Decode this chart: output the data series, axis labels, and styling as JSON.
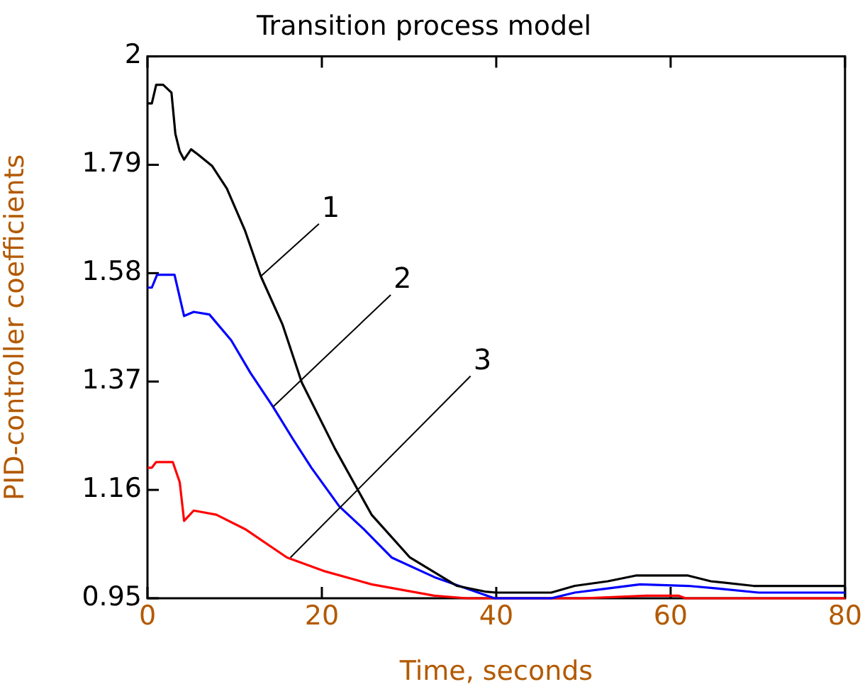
{
  "chart_data": {
    "type": "line",
    "title": "Transition process model",
    "xlabel": "Time, seconds",
    "ylabel": "PID-controller coefficients",
    "xlim": [
      0,
      80
    ],
    "xticks": [
      0,
      20,
      40,
      60,
      80
    ],
    "ylim": [
      0.95,
      2
    ],
    "yticks": [
      0.95,
      1.16,
      1.37,
      1.58,
      1.79,
      2
    ],
    "grid": false,
    "legend": false,
    "marker": "none",
    "line_style": "solid",
    "series": [
      {
        "color": "#000000",
        "x": [
          0,
          0.5,
          1.0,
          1.8,
          2.75,
          3.2,
          3.7,
          4.2,
          5.0,
          5.8,
          7.4,
          9.1,
          11.2,
          13,
          15.5,
          17.7,
          21.5,
          25.7,
          30.1,
          35.5,
          38.7,
          40,
          46.3,
          49,
          52.8,
          56,
          62,
          64.6,
          69.5,
          80
        ],
        "values": [
          1.909,
          1.909,
          1.945,
          1.945,
          1.93,
          1.85,
          1.816,
          1.8,
          1.82,
          1.81,
          1.788,
          1.744,
          1.662,
          1.574,
          1.48,
          1.368,
          1.24,
          1.112,
          1.029,
          0.974,
          0.963,
          0.961,
          0.961,
          0.974,
          0.983,
          0.994,
          0.994,
          0.983,
          0.974,
          0.974
        ]
      },
      {
        "color": "#0000ff",
        "x": [
          0,
          0.5,
          1.1,
          3.1,
          4.2,
          5.3,
          7.1,
          9.6,
          11.8,
          14.4,
          16.7,
          18.8,
          22,
          24.8,
          28,
          32.9,
          36.6,
          39.8,
          46.3,
          49,
          52.8,
          56.5,
          62,
          65.3,
          70.1,
          80
        ],
        "values": [
          1.552,
          1.552,
          1.577,
          1.577,
          1.497,
          1.505,
          1.5,
          1.45,
          1.387,
          1.321,
          1.258,
          1.203,
          1.128,
          1.084,
          1.029,
          0.991,
          0.969,
          0.95,
          0.95,
          0.961,
          0.969,
          0.977,
          0.974,
          0.969,
          0.961,
          0.961
        ]
      },
      {
        "color": "#ff0000",
        "x": [
          0,
          0.5,
          1,
          2.9,
          3.7,
          4.2,
          5.3,
          7.9,
          11.2,
          16,
          20.4,
          25.7,
          32.9,
          36.6,
          50,
          57.2,
          60.9,
          61.7,
          80
        ],
        "values": [
          1.203,
          1.203,
          1.214,
          1.214,
          1.175,
          1.1,
          1.12,
          1.112,
          1.084,
          1.029,
          1.002,
          0.977,
          0.955,
          0.95,
          0.95,
          0.955,
          0.955,
          0.95,
          0.95
        ]
      }
    ],
    "annotations": [
      {
        "text": "1",
        "x": 13,
        "y": 1.574
      },
      {
        "text": "2",
        "x": 14.4,
        "y": 1.321
      },
      {
        "text": "3",
        "x": 16.4,
        "y": 1.029
      }
    ]
  }
}
